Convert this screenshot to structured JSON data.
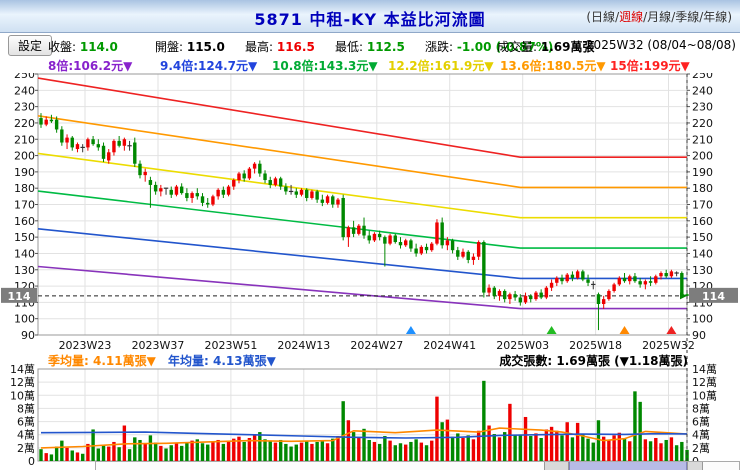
{
  "header": {
    "title": "5871 中租-KY 本益比河流圖",
    "paren_open": "(",
    "paren_close": ")",
    "separator": "/",
    "period_options": [
      {
        "id": "daily",
        "label": "日線",
        "active": false
      },
      {
        "id": "weekly",
        "label": "週線",
        "active": true
      },
      {
        "id": "monthly",
        "label": "月線",
        "active": false
      },
      {
        "id": "quarterly",
        "label": "季線",
        "active": false
      },
      {
        "id": "yearly",
        "label": "年線",
        "active": false
      }
    ]
  },
  "toolbar": {
    "settings_label": "設定",
    "stats": [
      {
        "label": "收盤:",
        "value": "114.0",
        "color": "#009900"
      },
      {
        "label": "開盤:",
        "value": "115.0",
        "color": "#000000"
      },
      {
        "label": "最高:",
        "value": "116.5",
        "color": "#ee0000"
      },
      {
        "label": "最低:",
        "value": "112.5",
        "color": "#009900"
      },
      {
        "label": "漲跌:",
        "value": "-1.00 (-0.87%)",
        "color": "#009900"
      },
      {
        "label": "成交量:",
        "value": "1.69萬張",
        "color": "#000000"
      }
    ],
    "period_label": "2025W32 (08/04~08/08)"
  },
  "pe_legend": [
    {
      "label": "8倍:106.2元",
      "arrow": "▼",
      "color": "#8822cc"
    },
    {
      "label": "9.4倍:124.7元",
      "arrow": "▼",
      "color": "#2244dd"
    },
    {
      "label": "10.8倍:143.3元",
      "arrow": "▼",
      "color": "#00aa33"
    },
    {
      "label": "12.2倍:161.9元",
      "arrow": "▼",
      "color": "#e3cf00"
    },
    {
      "label": "13.6倍:180.5元",
      "arrow": "▼",
      "color": "#ff9900"
    },
    {
      "label": "15倍:199元",
      "arrow": "▼",
      "color": "#ff2222"
    }
  ],
  "volume_header": {
    "quarter_avg": {
      "label": "季均量: 4.11萬張",
      "arrow": "▼",
      "color": "#ff8800"
    },
    "year_avg": {
      "label": "年均量: 4.13萬張",
      "arrow": "▼",
      "color": "#2255cc"
    },
    "volume_label": "成交張數: 1.69萬張 (▼1.18萬張)"
  },
  "chart_data": [
    {
      "type": "candlestick",
      "title": "本益比河流圖 (週線)",
      "ylim": [
        90,
        250
      ],
      "yticks": [
        90,
        100,
        110,
        120,
        130,
        140,
        150,
        160,
        170,
        180,
        190,
        200,
        210,
        220,
        230,
        240,
        250
      ],
      "x_tick_labels": [
        "2023W23",
        "2023W37",
        "2023W51",
        "2024W13",
        "2024W27",
        "2024W41",
        "2025W03",
        "2025W18",
        "2025W32"
      ],
      "x_tick_indices": [
        8.45,
        22.45,
        36.45,
        50.45,
        64.45,
        78.45,
        92.45,
        106.45,
        120.45
      ],
      "grid": true,
      "current_price": 114,
      "current_price_label": "114",
      "up_color": "#ee0000",
      "down_color": "#008800",
      "doji_color": "#333333",
      "river_lines": [
        {
          "name": "15倍",
          "color": "#ee2222",
          "start_value": 247.5,
          "end_value": 199.0,
          "flat_from_index": 92
        },
        {
          "name": "13.6倍",
          "color": "#ff9900",
          "start_value": 224.4,
          "end_value": 180.5,
          "flat_from_index": 92
        },
        {
          "name": "12.2倍",
          "color": "#ecdc00",
          "start_value": 201.3,
          "end_value": 161.9,
          "flat_from_index": 92
        },
        {
          "name": "10.8倍",
          "color": "#00bb44",
          "start_value": 178.2,
          "end_value": 143.3,
          "flat_from_index": 92
        },
        {
          "name": "9.4倍",
          "color": "#2255cc",
          "start_value": 155.1,
          "end_value": 124.7,
          "flat_from_index": 92
        },
        {
          "name": "8倍",
          "color": "#8833bb",
          "start_value": 132.0,
          "end_value": 106.2,
          "flat_from_index": 92
        }
      ],
      "event_markers": [
        {
          "index": 71,
          "color": "#1e90ff"
        },
        {
          "index": 98,
          "color": "#22bb22"
        },
        {
          "index": 112,
          "color": "#ff8800"
        },
        {
          "index": 121,
          "color": "#ee2222"
        }
      ],
      "candles": [
        [
          223,
          226,
          217,
          219
        ],
        [
          219,
          224,
          218,
          222
        ],
        [
          222,
          225,
          220,
          221
        ],
        [
          222,
          224,
          214,
          216
        ],
        [
          216,
          218,
          206,
          208
        ],
        [
          208,
          213,
          204,
          211
        ],
        [
          211,
          212,
          203,
          205
        ],
        [
          204,
          208,
          202,
          207
        ],
        [
          205,
          207,
          202,
          205
        ],
        [
          205,
          211,
          203,
          210
        ],
        [
          210,
          212,
          206,
          207
        ],
        [
          207,
          210,
          203,
          205
        ],
        [
          206,
          208,
          196,
          198
        ],
        [
          197,
          204,
          195,
          202
        ],
        [
          202,
          210,
          200,
          209
        ],
        [
          209,
          212,
          205,
          206
        ],
        [
          206,
          211,
          203,
          210
        ],
        [
          206,
          209,
          203,
          206
        ],
        [
          208,
          211,
          193,
          195
        ],
        [
          195,
          197,
          186,
          188
        ],
        [
          188,
          192,
          184,
          190
        ],
        [
          185,
          187,
          168,
          182
        ],
        [
          182,
          184,
          176,
          178
        ],
        [
          178,
          182,
          175,
          180
        ],
        [
          180,
          180,
          176,
          180
        ],
        [
          179,
          181,
          174,
          176
        ],
        [
          176,
          182,
          175,
          181
        ],
        [
          181,
          183,
          176,
          177
        ],
        [
          177,
          180,
          172,
          174
        ],
        [
          174,
          178,
          171,
          177
        ],
        [
          177,
          180,
          173,
          175
        ],
        [
          175,
          177,
          169,
          171
        ],
        [
          171,
          174,
          168,
          170
        ],
        [
          170,
          176,
          169,
          175
        ],
        [
          175,
          180,
          173,
          179
        ],
        [
          179,
          181,
          174,
          176
        ],
        [
          176,
          182,
          175,
          181
        ],
        [
          181,
          186,
          179,
          185
        ],
        [
          185,
          190,
          183,
          189
        ],
        [
          189,
          191,
          184,
          186
        ],
        [
          186,
          193,
          185,
          192
        ],
        [
          192,
          196,
          189,
          195
        ],
        [
          195,
          197,
          187,
          189
        ],
        [
          189,
          191,
          183,
          185
        ],
        [
          185,
          187,
          180,
          182
        ],
        [
          182,
          187,
          181,
          186
        ],
        [
          186,
          187,
          179,
          181
        ],
        [
          181,
          183,
          176,
          178
        ],
        [
          178,
          182,
          176,
          178
        ],
        [
          178,
          180,
          174,
          176
        ],
        [
          176,
          180,
          175,
          179
        ],
        [
          179,
          180,
          172,
          174
        ],
        [
          174,
          179,
          173,
          178
        ],
        [
          178,
          179,
          171,
          173
        ],
        [
          173,
          176,
          169,
          171
        ],
        [
          171,
          176,
          170,
          175
        ],
        [
          175,
          176,
          168,
          170
        ],
        [
          170,
          174,
          168,
          173
        ],
        [
          174,
          176,
          148,
          150
        ],
        [
          150,
          157,
          144,
          156
        ],
        [
          156,
          160,
          150,
          152
        ],
        [
          152,
          158,
          151,
          157
        ],
        [
          157,
          162,
          149,
          151
        ],
        [
          151,
          154,
          146,
          148
        ],
        [
          148,
          153,
          147,
          152
        ],
        [
          152,
          154,
          148,
          150
        ],
        [
          150,
          151,
          132,
          146
        ],
        [
          146,
          152,
          145,
          151
        ],
        [
          151,
          152,
          146,
          147
        ],
        [
          147,
          150,
          143,
          145
        ],
        [
          145,
          149,
          144,
          148
        ],
        [
          148,
          149,
          141,
          143
        ],
        [
          143,
          146,
          138,
          140
        ],
        [
          140,
          145,
          139,
          144
        ],
        [
          144,
          146,
          140,
          142
        ],
        [
          142,
          147,
          141,
          146
        ],
        [
          146,
          161,
          145,
          159
        ],
        [
          159,
          162,
          143,
          145
        ],
        [
          145,
          150,
          142,
          148
        ],
        [
          148,
          149,
          140,
          142
        ],
        [
          142,
          144,
          136,
          138
        ],
        [
          138,
          143,
          137,
          141
        ],
        [
          141,
          142,
          134,
          136
        ],
        [
          136,
          140,
          133,
          138
        ],
        [
          138,
          148,
          136,
          147
        ],
        [
          147,
          148,
          113,
          116
        ],
        [
          116,
          121,
          114,
          119
        ],
        [
          119,
          120,
          112,
          114
        ],
        [
          114,
          118,
          111,
          117
        ],
        [
          117,
          118,
          110,
          112
        ],
        [
          112,
          116,
          109,
          115
        ],
        [
          115,
          117,
          111,
          113
        ],
        [
          113,
          115,
          108,
          110
        ],
        [
          110,
          116,
          109,
          114
        ],
        [
          114,
          115,
          110,
          112
        ],
        [
          112,
          117,
          111,
          116
        ],
        [
          116,
          118,
          112,
          113
        ],
        [
          113,
          120,
          112,
          119
        ],
        [
          119,
          124,
          117,
          122
        ],
        [
          122,
          126,
          120,
          125
        ],
        [
          125,
          127,
          121,
          123
        ],
        [
          123,
          128,
          122,
          127
        ],
        [
          127,
          129,
          123,
          125
        ],
        [
          125,
          130,
          124,
          129
        ],
        [
          129,
          130,
          123,
          124
        ],
        [
          124,
          127,
          120,
          122
        ],
        [
          121,
          123,
          118,
          121
        ],
        [
          115,
          116,
          93,
          109
        ],
        [
          109,
          114,
          106,
          112
        ],
        [
          112,
          118,
          111,
          117
        ],
        [
          117,
          122,
          116,
          121
        ],
        [
          121,
          126,
          120,
          125
        ],
        [
          125,
          128,
          122,
          123
        ],
        [
          123,
          127,
          121,
          126
        ],
        [
          126,
          128,
          122,
          123
        ],
        [
          123,
          125,
          119,
          121
        ],
        [
          121,
          124,
          118,
          123
        ],
        [
          123,
          126,
          120,
          122
        ],
        [
          122,
          127,
          121,
          126
        ],
        [
          126,
          129,
          124,
          128
        ],
        [
          128,
          130,
          125,
          126
        ],
        [
          126,
          130,
          125,
          129
        ],
        [
          128,
          129,
          126,
          128
        ],
        [
          128,
          129,
          114,
          115
        ],
        [
          115,
          116.5,
          112.5,
          114
        ]
      ]
    },
    {
      "type": "bar",
      "title": "成交張數",
      "ylim": [
        0,
        14
      ],
      "ytick_values": [
        0,
        2,
        4,
        6,
        8,
        10,
        12,
        14
      ],
      "ytick_labels": [
        "0",
        "2萬",
        "4萬",
        "6萬",
        "8萬",
        "10萬",
        "12萬",
        "14萬"
      ],
      "values": [
        1.8,
        1.2,
        1.0,
        2.2,
        3.1,
        2.0,
        1.6,
        1.3,
        1.1,
        2.6,
        4.8,
        1.9,
        2.5,
        2.2,
        2.9,
        2.1,
        5.4,
        1.8,
        3.6,
        3.2,
        2.7,
        3.9,
        2.8,
        2.3,
        1.9,
        2.4,
        2.7,
        2.3,
        2.8,
        3.1,
        3.3,
        2.7,
        2.5,
        2.9,
        3.2,
        2.6,
        3.0,
        3.4,
        3.7,
        2.9,
        3.5,
        4.1,
        4.4,
        3.3,
        3.0,
        2.8,
        3.2,
        2.6,
        2.2,
        2.5,
        2.8,
        3.0,
        2.6,
        2.9,
        3.1,
        2.7,
        3.4,
        3.8,
        9.1,
        6.2,
        4.4,
        3.6,
        4.9,
        3.2,
        2.9,
        2.6,
        3.8,
        3.1,
        2.4,
        2.7,
        2.5,
        2.9,
        3.3,
        2.8,
        2.4,
        3.1,
        9.8,
        5.9,
        6.3,
        3.7,
        4.2,
        3.5,
        3.9,
        3.3,
        4.6,
        12.2,
        5.4,
        4.1,
        3.6,
        4.4,
        8.7,
        4.0,
        3.9,
        6.7,
        3.8,
        4.2,
        3.5,
        4.8,
        5.2,
        4.6,
        3.9,
        5.9,
        3.6,
        5.8,
        4.1,
        3.4,
        2.8,
        6.2,
        3.7,
        3.2,
        3.9,
        4.3,
        3.5,
        3.0,
        10.6,
        9.0,
        3.3,
        3.0,
        3.5,
        2.7,
        3.2,
        3.6,
        2.4,
        2.9,
        1.69
      ],
      "ma_lines": [
        {
          "name": "季均量",
          "color": "#ff8800",
          "points": [
            [
              0,
              2.0
            ],
            [
              8,
              2.2
            ],
            [
              16,
              2.6
            ],
            [
              24,
              2.7
            ],
            [
              32,
              2.9
            ],
            [
              40,
              3.1
            ],
            [
              48,
              3.0
            ],
            [
              56,
              3.1
            ],
            [
              60,
              4.6
            ],
            [
              68,
              4.3
            ],
            [
              76,
              4.7
            ],
            [
              84,
              4.4
            ],
            [
              88,
              5.0
            ],
            [
              96,
              4.7
            ],
            [
              100,
              4.4
            ],
            [
              104,
              3.8
            ],
            [
              108,
              3.1
            ],
            [
              112,
              3.4
            ],
            [
              116,
              4.5
            ],
            [
              120,
              4.3
            ],
            [
              124,
              4.11
            ]
          ]
        },
        {
          "name": "年均量",
          "color": "#2255cc",
          "points": [
            [
              0,
              4.3
            ],
            [
              10,
              4.35
            ],
            [
              20,
              4.4
            ],
            [
              30,
              4.2
            ],
            [
              40,
              4.0
            ],
            [
              50,
              3.8
            ],
            [
              60,
              3.6
            ],
            [
              70,
              3.5
            ],
            [
              80,
              3.6
            ],
            [
              88,
              3.9
            ],
            [
              96,
              4.0
            ],
            [
              104,
              4.1
            ],
            [
              112,
              4.05
            ],
            [
              118,
              4.15
            ],
            [
              124,
              4.13
            ]
          ]
        }
      ]
    }
  ],
  "scrollbar": {
    "thumb_color": "#b7bbe6"
  }
}
